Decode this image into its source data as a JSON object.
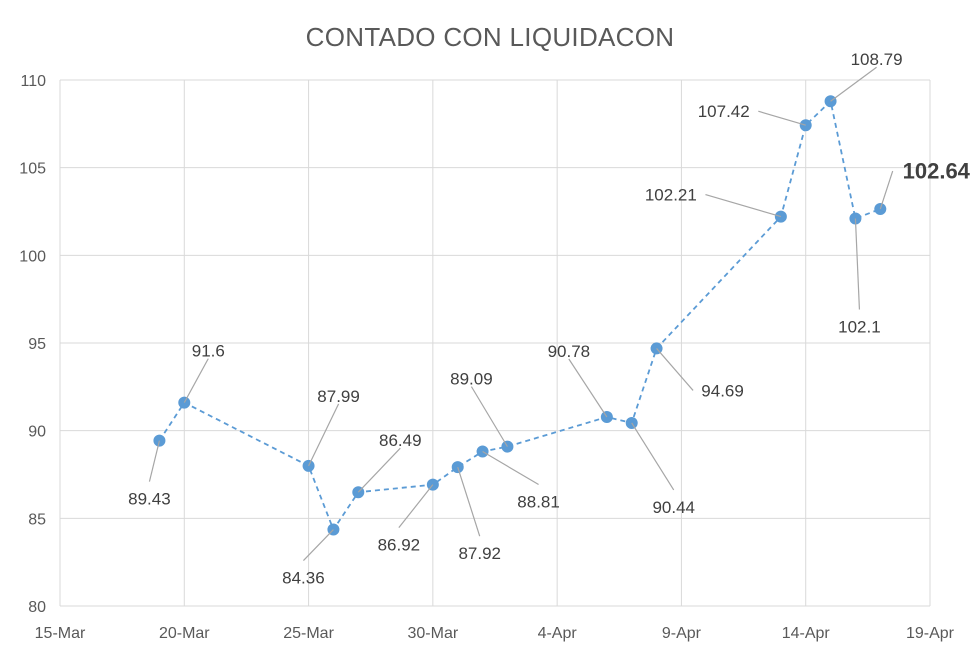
{
  "chart_data": {
    "type": "line",
    "title": "CONTADO CON LIQUIDACON",
    "xlabel": "",
    "ylabel": "",
    "ylim": [
      80,
      110
    ],
    "y_ticks": [
      80,
      85,
      90,
      95,
      100,
      105,
      110
    ],
    "x_ticks": [
      "2020-03-15",
      "2020-03-20",
      "2020-03-25",
      "2020-03-30",
      "2020-04-04",
      "2020-04-09",
      "2020-04-14",
      "2020-04-19"
    ],
    "x_tick_labels": [
      "15-Mar",
      "20-Mar",
      "25-Mar",
      "30-Mar",
      "4-Apr",
      "9-Apr",
      "14-Apr",
      "19-Apr"
    ],
    "grid": true,
    "line_style": "dashed",
    "marker": "circle",
    "color": "#5b9bd5",
    "series": [
      {
        "points": [
          {
            "x": "2020-03-19",
            "y": 89.43,
            "label": "89.43"
          },
          {
            "x": "2020-03-20",
            "y": 91.6,
            "label": "91.6"
          },
          {
            "x": "2020-03-25",
            "y": 87.99,
            "label": "87.99"
          },
          {
            "x": "2020-03-26",
            "y": 84.36,
            "label": "84.36"
          },
          {
            "x": "2020-03-27",
            "y": 86.49,
            "label": "86.49"
          },
          {
            "x": "2020-03-30",
            "y": 86.92,
            "label": "86.92"
          },
          {
            "x": "2020-03-31",
            "y": 87.92,
            "label": "87.92"
          },
          {
            "x": "2020-04-01",
            "y": 88.81,
            "label": "88.81"
          },
          {
            "x": "2020-04-02",
            "y": 89.09,
            "label": "89.09"
          },
          {
            "x": "2020-04-06",
            "y": 90.78,
            "label": "90.78"
          },
          {
            "x": "2020-04-07",
            "y": 90.44,
            "label": "90.44"
          },
          {
            "x": "2020-04-08",
            "y": 94.69,
            "label": "94.69"
          },
          {
            "x": "2020-04-13",
            "y": 102.21,
            "label": "102.21"
          },
          {
            "x": "2020-04-14",
            "y": 107.42,
            "label": "107.42"
          },
          {
            "x": "2020-04-15",
            "y": 108.79,
            "label": "108.79"
          },
          {
            "x": "2020-04-16",
            "y": 102.1,
            "label": "102.1"
          },
          {
            "x": "2020-04-17",
            "y": 102.64,
            "label": "102.64",
            "emphasis": "bold"
          }
        ]
      }
    ]
  }
}
